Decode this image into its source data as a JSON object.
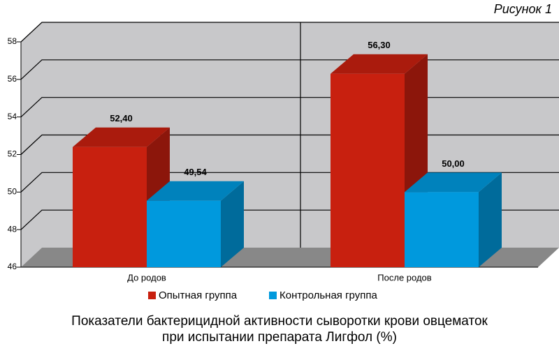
{
  "chart_data": {
    "type": "bar3d",
    "annotation": "Рисунок 1",
    "title": [
      "Показатели бактерицидной активности сыворотки крови овцематок",
      "при испытании препарата Лигфол (%)"
    ],
    "categories": [
      "До родов",
      "После родов"
    ],
    "series": [
      {
        "name": "Опытная группа",
        "color": "#c8200f",
        "values": [
          52.4,
          56.3
        ],
        "value_labels": [
          "52,40",
          "56,30"
        ]
      },
      {
        "name": "Контрольная группа",
        "color": "#0099dd",
        "values": [
          49.54,
          50.0
        ],
        "value_labels": [
          "49,54",
          "50,00"
        ]
      }
    ],
    "ylim": [
      46,
      58
    ],
    "yticks": [
      46,
      48,
      50,
      52,
      54,
      56,
      58
    ],
    "grid": true,
    "legend": "bottom"
  }
}
